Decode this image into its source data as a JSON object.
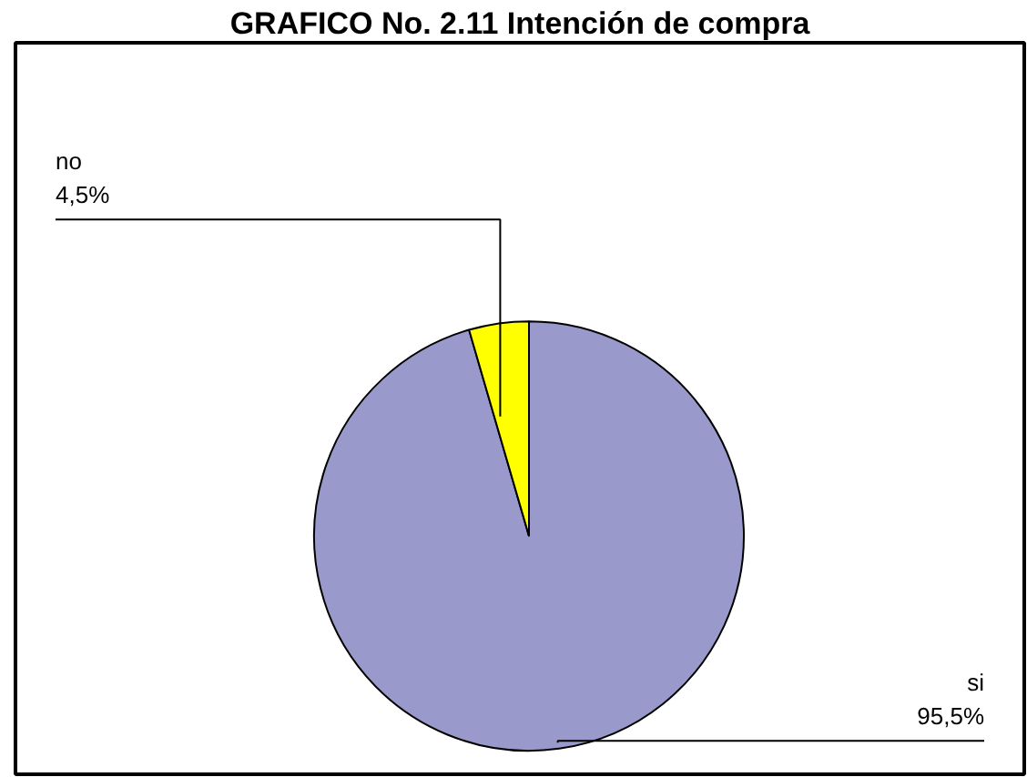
{
  "chart_data": {
    "type": "pie",
    "title": "GRAFICO No. 2.11 Intención de compra",
    "categories": [
      "si",
      "no"
    ],
    "values": [
      95.5,
      4.5
    ],
    "colors": [
      "#9999cc",
      "#ffff00"
    ],
    "value_labels": [
      "95,5%",
      "4,5%"
    ]
  }
}
